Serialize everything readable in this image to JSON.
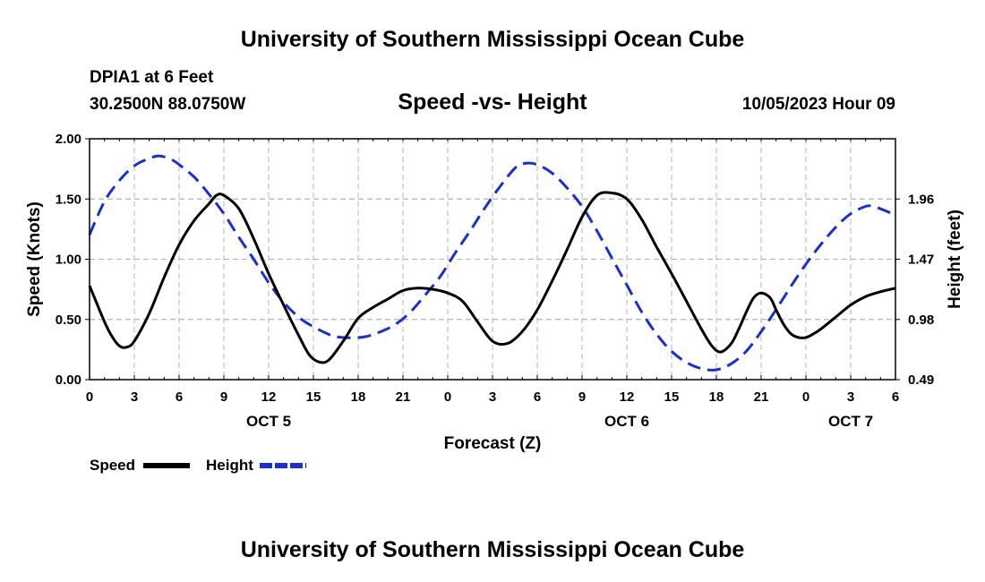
{
  "title": "University of Southern Mississippi Ocean Cube",
  "footer_title": "University of Southern Mississippi Ocean Cube",
  "station": "DPIA1 at 6 Feet",
  "coords": "30.2500N  88.0750W",
  "datetime": "10/05/2023 Hour 09",
  "chart_data": {
    "type": "line",
    "title": "Speed -vs- Height",
    "xlabel": "Forecast (Z)",
    "ylabel_left": "Speed (Knots)",
    "ylabel_right": "Height (feet)",
    "x_range_hours": [
      0,
      54
    ],
    "x_ticks": [
      {
        "h": 0,
        "label": "0"
      },
      {
        "h": 3,
        "label": "3"
      },
      {
        "h": 6,
        "label": "6"
      },
      {
        "h": 9,
        "label": "9"
      },
      {
        "h": 12,
        "label": "12"
      },
      {
        "h": 15,
        "label": "15"
      },
      {
        "h": 18,
        "label": "18"
      },
      {
        "h": 21,
        "label": "21"
      },
      {
        "h": 24,
        "label": "0"
      },
      {
        "h": 27,
        "label": "3"
      },
      {
        "h": 30,
        "label": "6"
      },
      {
        "h": 33,
        "label": "9"
      },
      {
        "h": 36,
        "label": "12"
      },
      {
        "h": 39,
        "label": "15"
      },
      {
        "h": 42,
        "label": "18"
      },
      {
        "h": 45,
        "label": "21"
      },
      {
        "h": 48,
        "label": "0"
      },
      {
        "h": 51,
        "label": "3"
      },
      {
        "h": 54,
        "label": "6"
      }
    ],
    "day_labels": [
      {
        "h": 12,
        "label": "OCT 5"
      },
      {
        "h": 36,
        "label": "OCT 6"
      },
      {
        "h": 51,
        "label": "OCT 7"
      }
    ],
    "ylim_left": [
      0,
      2.0
    ],
    "y_ticks_left": [
      {
        "v": 0,
        "label": "0.00"
      },
      {
        "v": 0.5,
        "label": "0.50"
      },
      {
        "v": 1.0,
        "label": "1.00"
      },
      {
        "v": 1.5,
        "label": "1.50"
      },
      {
        "v": 2.0,
        "label": "2.00"
      }
    ],
    "ylim_right": [
      0.49,
      2.45
    ],
    "y_ticks_right": [
      {
        "v": 0.49,
        "label": "0.49"
      },
      {
        "v": 0.98,
        "label": "0.98"
      },
      {
        "v": 1.47,
        "label": "1.47"
      },
      {
        "v": 1.96,
        "label": "1.96"
      }
    ],
    "grid": true,
    "legend_position": "bottom-left",
    "series": [
      {
        "name": "Speed",
        "axis": "left",
        "color": "#000000",
        "style": "solid",
        "x": [
          0,
          1,
          1.5,
          2,
          2.5,
          3,
          4,
          5,
          6,
          7,
          8,
          8.5,
          9,
          10,
          11,
          12,
          13,
          14,
          14.7,
          15.3,
          16,
          17,
          18,
          19,
          20,
          21,
          22,
          23,
          24,
          25,
          26,
          27,
          28,
          29,
          30,
          31,
          32,
          33,
          34,
          35,
          36,
          37,
          38,
          39,
          40,
          41,
          41.7,
          42.3,
          43,
          43.5,
          44,
          44.5,
          45,
          45.6,
          46,
          46.5,
          47,
          47.5,
          48,
          48.5,
          49,
          50,
          51,
          52,
          53,
          54
        ],
        "y": [
          0.78,
          0.48,
          0.36,
          0.28,
          0.27,
          0.32,
          0.55,
          0.85,
          1.12,
          1.32,
          1.46,
          1.53,
          1.53,
          1.42,
          1.17,
          0.88,
          0.62,
          0.37,
          0.21,
          0.15,
          0.16,
          0.32,
          0.51,
          0.6,
          0.67,
          0.74,
          0.76,
          0.75,
          0.72,
          0.65,
          0.48,
          0.32,
          0.3,
          0.4,
          0.58,
          0.82,
          1.08,
          1.35,
          1.53,
          1.55,
          1.5,
          1.33,
          1.1,
          0.88,
          0.65,
          0.42,
          0.28,
          0.23,
          0.3,
          0.42,
          0.56,
          0.68,
          0.72,
          0.68,
          0.58,
          0.46,
          0.38,
          0.35,
          0.35,
          0.38,
          0.42,
          0.52,
          0.62,
          0.69,
          0.73,
          0.76
        ]
      },
      {
        "name": "Height",
        "axis": "right",
        "color": "#1a2ed6",
        "style": "dashed",
        "x": [
          0,
          1,
          2,
          3,
          4,
          4.7,
          5.5,
          6,
          7,
          8,
          9,
          10,
          11,
          12,
          13,
          14,
          15,
          16,
          16.5,
          17.5,
          18.5,
          19.5,
          20.5,
          21.5,
          22.5,
          23.5,
          24.5,
          25.5,
          26.5,
          27.5,
          28.5,
          29.2,
          30,
          31,
          32,
          33,
          34,
          35,
          36,
          37,
          38,
          39,
          40,
          41,
          42,
          43,
          44,
          45,
          46,
          47,
          48,
          49,
          50,
          51,
          52,
          52.5,
          53,
          54
        ],
        "y": [
          1.67,
          1.94,
          2.11,
          2.23,
          2.29,
          2.31,
          2.28,
          2.24,
          2.14,
          2.0,
          1.84,
          1.65,
          1.47,
          1.28,
          1.12,
          1.0,
          0.92,
          0.86,
          0.84,
          0.83,
          0.84,
          0.88,
          0.94,
          1.04,
          1.18,
          1.33,
          1.52,
          1.7,
          1.89,
          2.06,
          2.21,
          2.25,
          2.24,
          2.17,
          2.05,
          1.9,
          1.7,
          1.48,
          1.26,
          1.04,
          0.86,
          0.72,
          0.63,
          0.58,
          0.57,
          0.62,
          0.72,
          0.88,
          1.06,
          1.25,
          1.43,
          1.59,
          1.73,
          1.84,
          1.9,
          1.9,
          1.88,
          1.83
        ]
      }
    ],
    "legend": [
      {
        "name": "Speed",
        "color": "#000000",
        "style": "solid"
      },
      {
        "name": "Height",
        "color": "#1a2ed6",
        "style": "dashed"
      }
    ]
  }
}
